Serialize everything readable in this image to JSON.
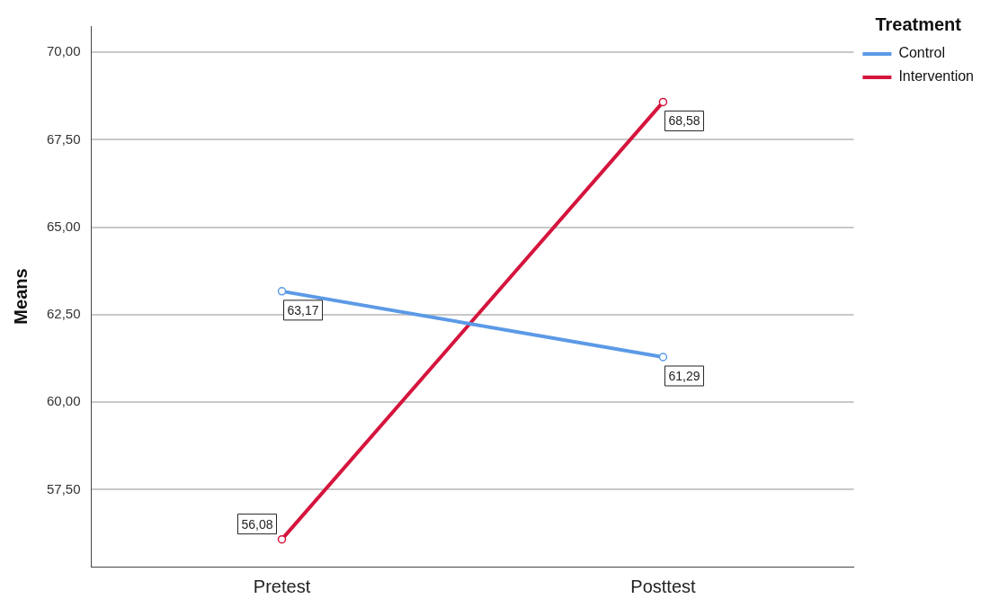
{
  "chart_data": {
    "type": "line",
    "ylabel": "Means",
    "legend_title": "Treatment",
    "categories": [
      "Pretest",
      "Posttest"
    ],
    "series": [
      {
        "name": "Control",
        "color": "#5b9ae6",
        "values": [
          63.17,
          61.29
        ],
        "value_labels": [
          "63,17",
          "61,29"
        ]
      },
      {
        "name": "Intervention",
        "color": "#d5153d",
        "values": [
          56.08,
          68.58
        ],
        "value_labels": [
          "56,08",
          "68,58"
        ]
      }
    ],
    "ylim": [
      55.3,
      70.75
    ],
    "yticks": [
      {
        "value": 57.5,
        "label": "57,50"
      },
      {
        "value": 60,
        "label": "60,00"
      },
      {
        "value": 62.5,
        "label": "62,50"
      },
      {
        "value": 65,
        "label": "65,00"
      },
      {
        "value": 67.5,
        "label": "67,50"
      },
      {
        "value": 70,
        "label": "70,00"
      }
    ],
    "grid": "y",
    "legend": "top right",
    "marker": "circle",
    "line_style": "solid"
  }
}
